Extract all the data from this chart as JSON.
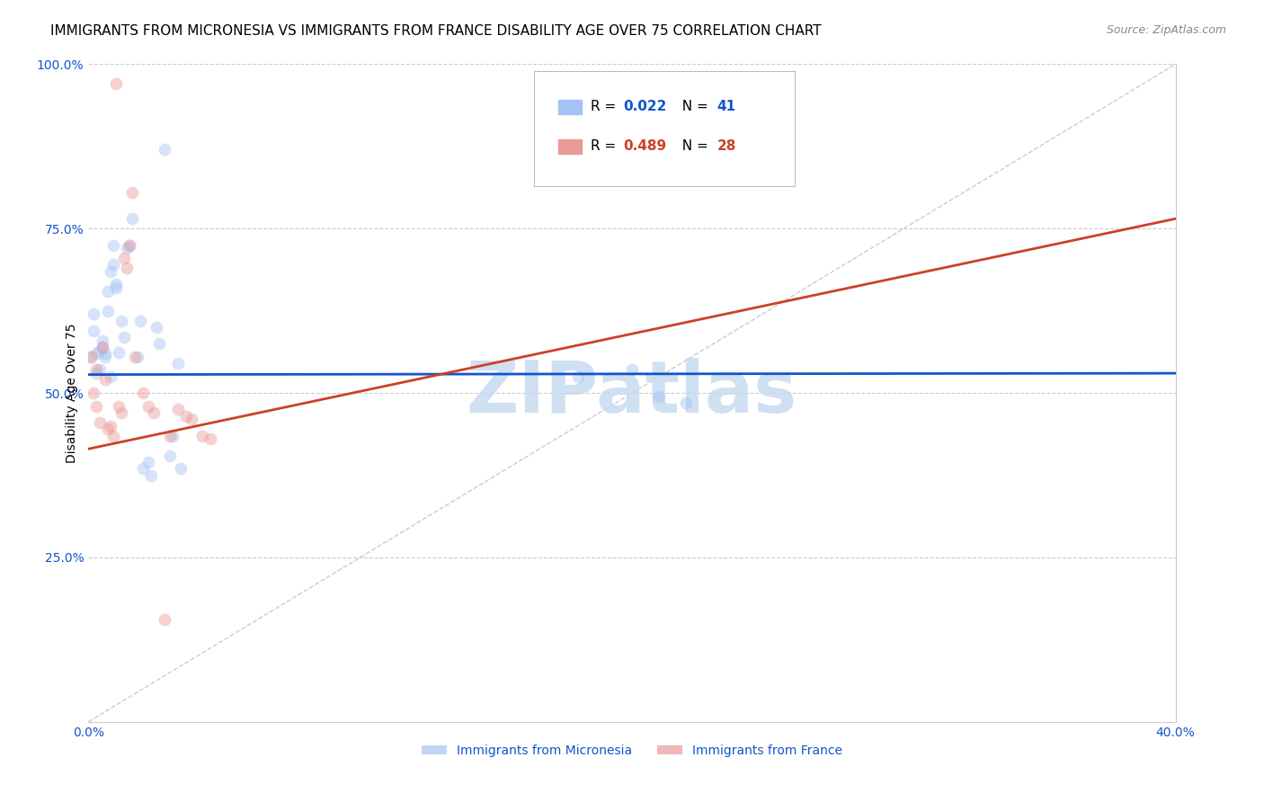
{
  "title": "IMMIGRANTS FROM MICRONESIA VS IMMIGRANTS FROM FRANCE DISABILITY AGE OVER 75 CORRELATION CHART",
  "source": "Source: ZipAtlas.com",
  "ylabel": "Disability Age Over 75",
  "xlim": [
    0.0,
    0.4
  ],
  "ylim": [
    0.0,
    1.0
  ],
  "xticks": [
    0.0,
    0.1,
    0.2,
    0.3,
    0.4
  ],
  "xticklabels": [
    "0.0%",
    "",
    "",
    "",
    "40.0%"
  ],
  "yticks": [
    0.25,
    0.5,
    0.75,
    1.0
  ],
  "yticklabels": [
    "25.0%",
    "50.0%",
    "75.0%",
    "100.0%"
  ],
  "blue_color": "#a4c2f4",
  "pink_color": "#ea9999",
  "blue_line_color": "#1155cc",
  "pink_line_color": "#cc4125",
  "grid_color": "#cccccc",
  "micronesia_x": [
    0.001,
    0.002,
    0.002,
    0.003,
    0.003,
    0.004,
    0.004,
    0.005,
    0.005,
    0.006,
    0.006,
    0.007,
    0.007,
    0.008,
    0.008,
    0.009,
    0.009,
    0.01,
    0.01,
    0.011,
    0.012,
    0.013,
    0.014,
    0.015,
    0.016,
    0.018,
    0.019,
    0.02,
    0.022,
    0.023,
    0.025,
    0.026,
    0.028,
    0.03,
    0.031,
    0.033,
    0.034,
    0.18,
    0.2,
    0.21,
    0.22
  ],
  "micronesia_y": [
    0.555,
    0.595,
    0.62,
    0.56,
    0.53,
    0.565,
    0.535,
    0.57,
    0.58,
    0.555,
    0.56,
    0.625,
    0.655,
    0.685,
    0.525,
    0.695,
    0.725,
    0.665,
    0.66,
    0.562,
    0.61,
    0.585,
    0.72,
    0.725,
    0.765,
    0.555,
    0.61,
    0.385,
    0.395,
    0.375,
    0.6,
    0.575,
    0.87,
    0.405,
    0.435,
    0.545,
    0.385,
    0.525,
    0.535,
    0.495,
    0.485
  ],
  "france_x": [
    0.001,
    0.002,
    0.003,
    0.003,
    0.004,
    0.005,
    0.006,
    0.007,
    0.008,
    0.009,
    0.01,
    0.011,
    0.012,
    0.013,
    0.014,
    0.015,
    0.016,
    0.017,
    0.02,
    0.022,
    0.024,
    0.028,
    0.03,
    0.033,
    0.036,
    0.038,
    0.042,
    0.045
  ],
  "france_y": [
    0.555,
    0.5,
    0.535,
    0.48,
    0.455,
    0.57,
    0.52,
    0.445,
    0.45,
    0.435,
    0.97,
    0.48,
    0.47,
    0.705,
    0.69,
    0.725,
    0.805,
    0.555,
    0.5,
    0.48,
    0.47,
    0.155,
    0.435,
    0.475,
    0.465,
    0.46,
    0.435,
    0.43
  ],
  "blue_line_intercept": 0.528,
  "blue_line_slope": 0.005,
  "pink_line_intercept": 0.415,
  "pink_line_slope": 0.875,
  "diagonal_color": "#aaaaaa",
  "watermark": "ZIPatlas",
  "watermark_color": "#c5d9f1",
  "title_fontsize": 11,
  "tick_label_color": "#1155cc",
  "background_color": "#ffffff",
  "marker_size": 100,
  "marker_alpha": 0.45,
  "tick_fontsize": 10
}
